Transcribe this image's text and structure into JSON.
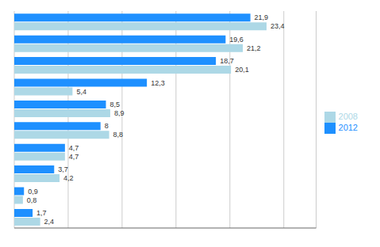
{
  "chart_data": {
    "type": "bar",
    "orientation": "horizontal",
    "categories": [
      null,
      null,
      null,
      null,
      null,
      null,
      null,
      null,
      null,
      null
    ],
    "series": [
      {
        "name": "2012",
        "color": "#1E90FF",
        "values": [
          21.9,
          19.6,
          18.7,
          12.3,
          8.5,
          8.0,
          4.7,
          3.7,
          0.9,
          1.7
        ],
        "value_labels": [
          "21,9",
          "19,6",
          "18,7",
          "12,3",
          "8,5",
          "8",
          "4,7",
          "3,7",
          "0,9",
          "1,7"
        ]
      },
      {
        "name": "2008",
        "color": "#ADD8E6",
        "values": [
          23.4,
          21.2,
          20.1,
          5.4,
          8.9,
          8.8,
          4.7,
          4.2,
          0.8,
          2.4
        ],
        "value_labels": [
          "23,4",
          "21,2",
          "20,1",
          "5,4",
          "8,9",
          "8,8",
          "4,7",
          "4,2",
          "0,8",
          "2,4"
        ]
      }
    ],
    "xlim": [
      0,
      28
    ],
    "xticks": [
      0,
      5,
      10,
      15,
      20,
      25
    ],
    "grid": true,
    "legend": "right",
    "data_labels": true,
    "tick_labels": false
  }
}
